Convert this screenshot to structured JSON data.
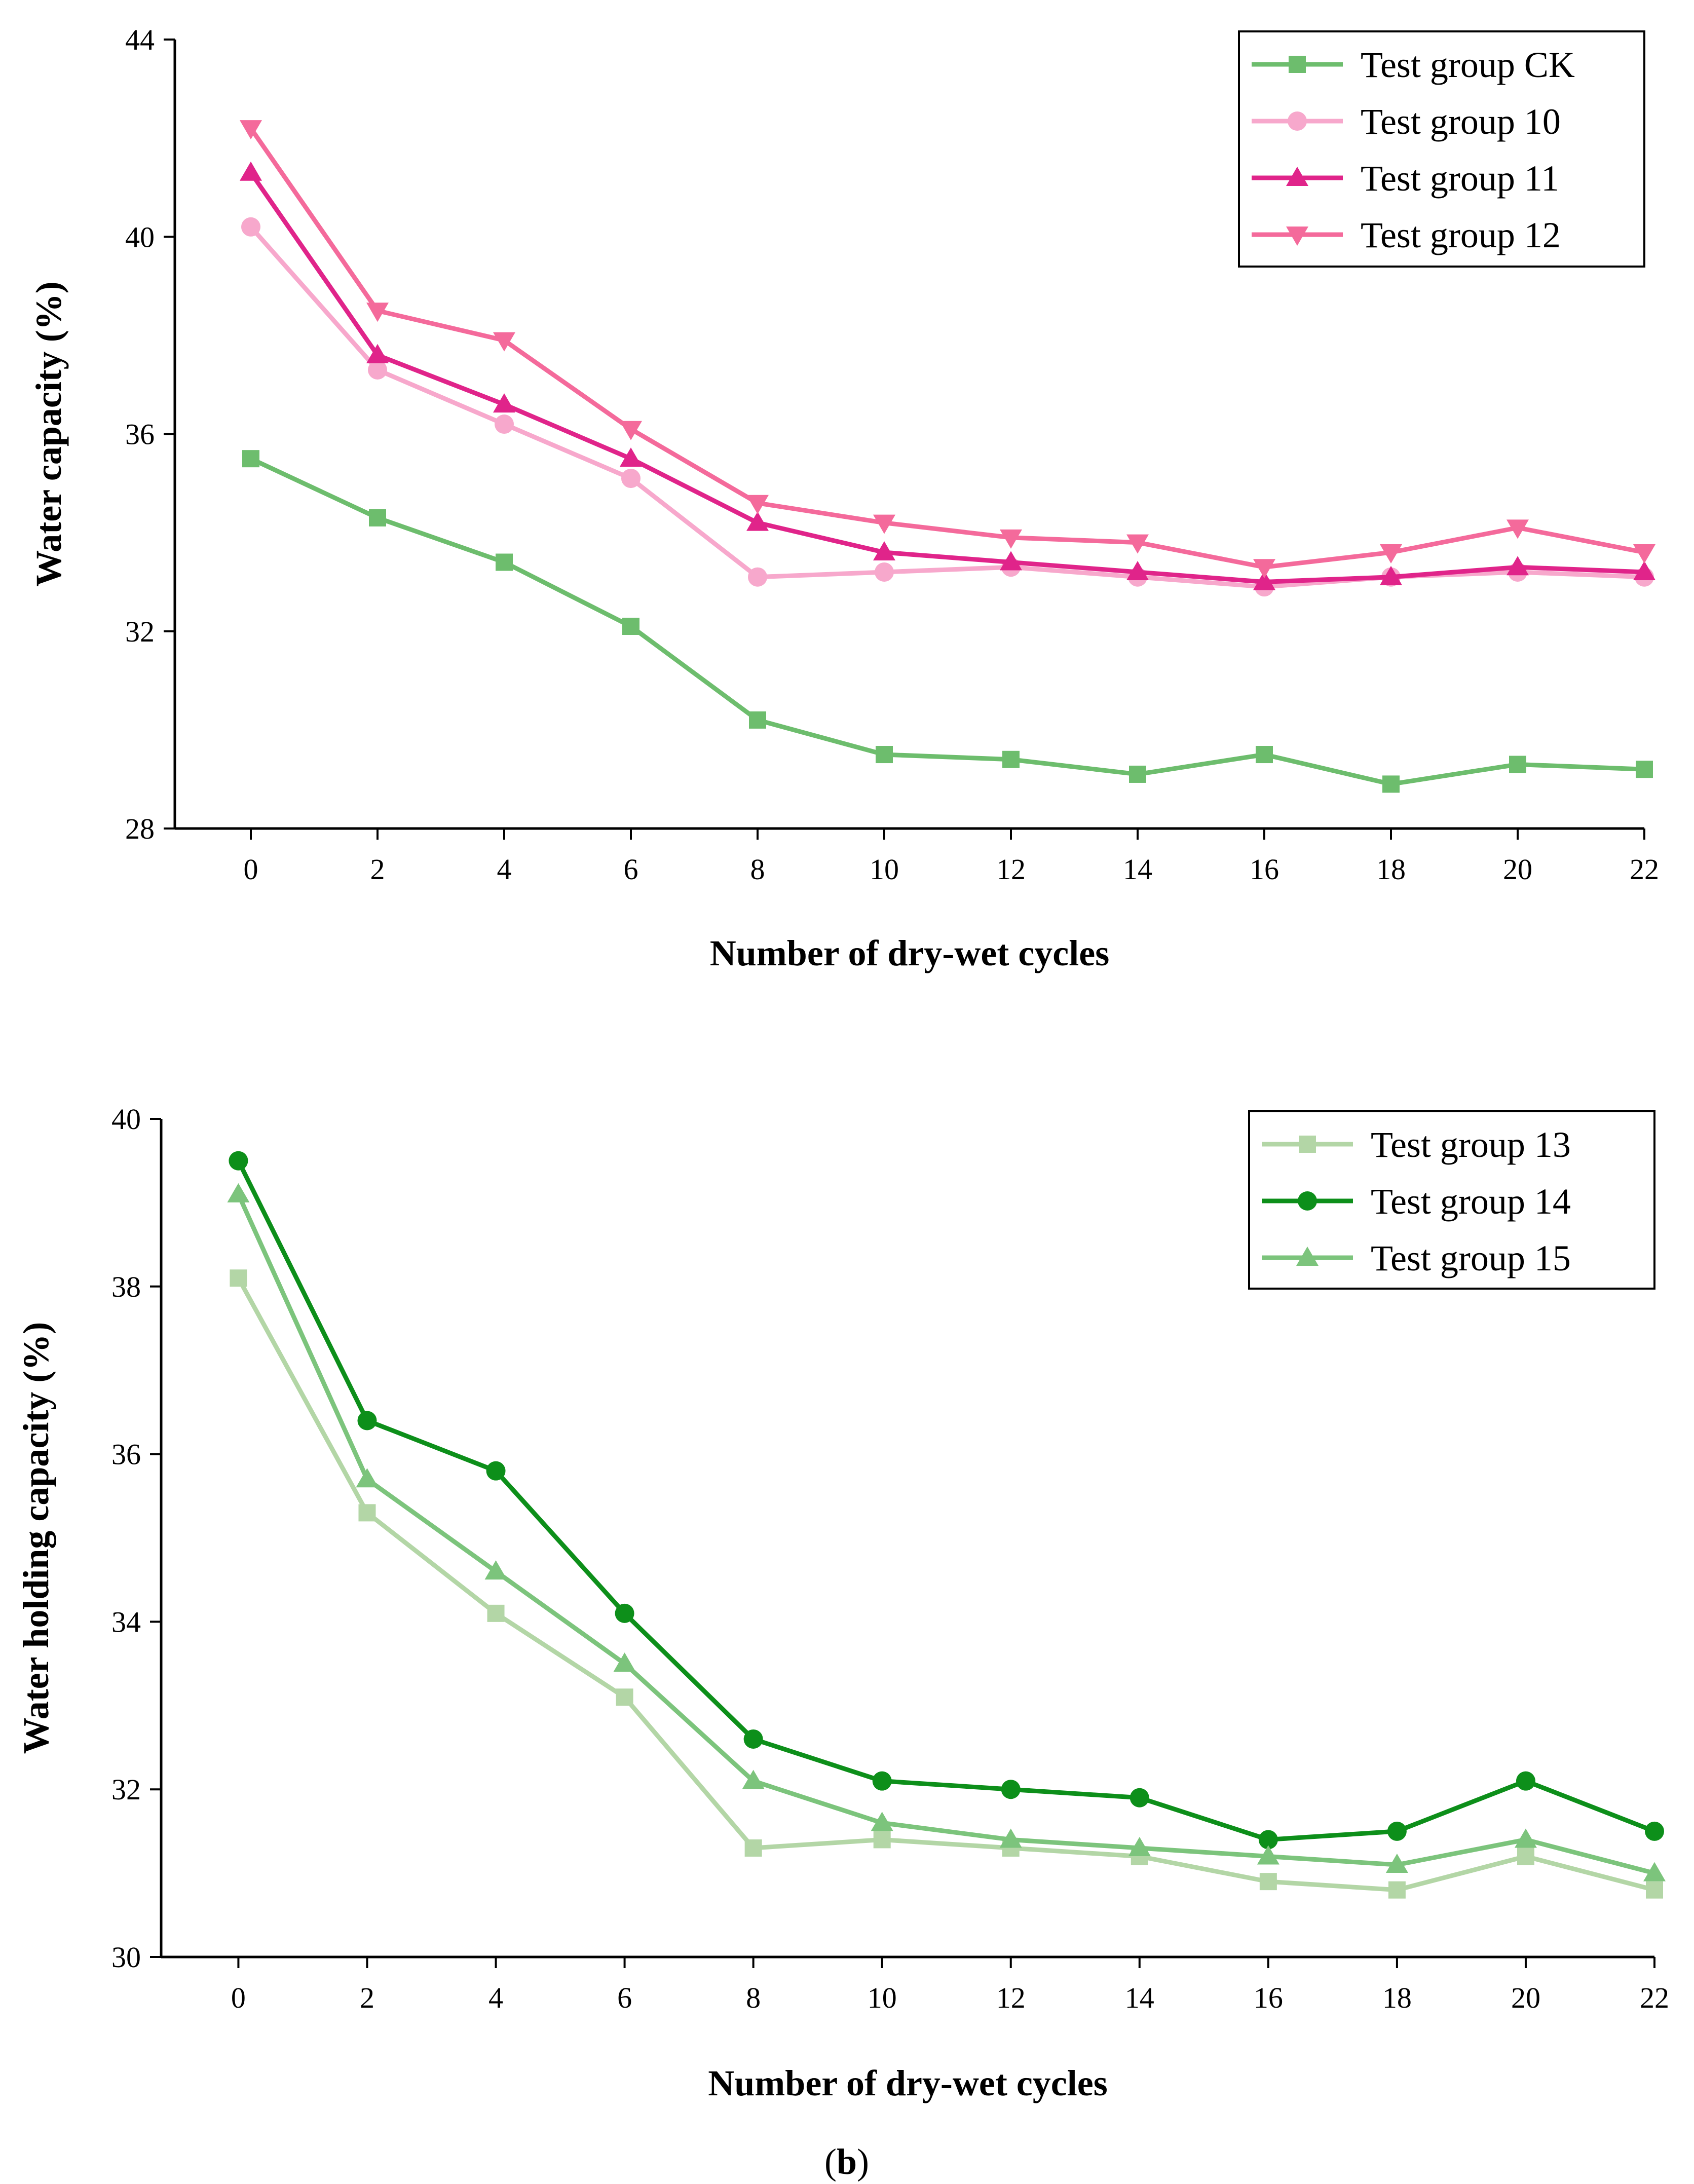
{
  "caption": {
    "open": "(",
    "letter": "b",
    "close": ")"
  },
  "chart_data": [
    {
      "type": "line",
      "title": "",
      "xlabel": "Number of dry-wet cycles",
      "ylabel": "Water capacity (%)",
      "xlim": [
        -1.2,
        22
      ],
      "ylim": [
        28,
        44
      ],
      "xticks": [
        0,
        2,
        4,
        6,
        8,
        10,
        12,
        14,
        16,
        18,
        20,
        22
      ],
      "yticks": [
        28,
        32,
        36,
        40,
        44
      ],
      "legend_position": "top-right",
      "x": [
        0,
        2,
        4,
        6,
        8,
        10,
        12,
        14,
        16,
        18,
        20,
        22
      ],
      "series": [
        {
          "name": "Test group CK",
          "color": "#6dbd6d",
          "marker": "square",
          "values": [
            35.5,
            34.3,
            33.4,
            32.1,
            30.2,
            29.5,
            29.4,
            29.1,
            29.5,
            28.9,
            29.3,
            29.2
          ]
        },
        {
          "name": "Test group 10",
          "color": "#f7a8cc",
          "marker": "circle",
          "values": [
            40.2,
            37.3,
            36.2,
            35.1,
            33.1,
            33.2,
            33.3,
            33.1,
            32.9,
            33.1,
            33.2,
            33.1
          ]
        },
        {
          "name": "Test group 11",
          "color": "#e0248a",
          "marker": "triangle-up",
          "values": [
            41.3,
            37.6,
            36.6,
            35.5,
            34.2,
            33.6,
            33.4,
            33.2,
            33.0,
            33.1,
            33.3,
            33.2
          ]
        },
        {
          "name": "Test group 12",
          "color": "#f46a9b",
          "marker": "triangle-down",
          "values": [
            42.2,
            38.5,
            37.9,
            36.1,
            34.6,
            34.2,
            33.9,
            33.8,
            33.3,
            33.6,
            34.1,
            33.6
          ]
        }
      ]
    },
    {
      "type": "line",
      "title": "",
      "xlabel": "Number of dry-wet cycles",
      "ylabel": "Water holding capacity (%)",
      "xlim": [
        -1.2,
        22
      ],
      "ylim": [
        30,
        40
      ],
      "xticks": [
        0,
        2,
        4,
        6,
        8,
        10,
        12,
        14,
        16,
        18,
        20,
        22
      ],
      "yticks": [
        30,
        32,
        34,
        36,
        38,
        40
      ],
      "legend_position": "top-right",
      "x": [
        0,
        2,
        4,
        6,
        8,
        10,
        12,
        14,
        16,
        18,
        20,
        22
      ],
      "series": [
        {
          "name": "Test group 13",
          "color": "#b3d6a6",
          "marker": "square",
          "values": [
            38.1,
            35.3,
            34.1,
            33.1,
            31.3,
            31.4,
            31.3,
            31.2,
            30.9,
            30.8,
            31.2,
            30.8
          ]
        },
        {
          "name": "Test group 14",
          "color": "#0d8f1a",
          "marker": "circle",
          "values": [
            39.5,
            36.4,
            35.8,
            34.1,
            32.6,
            32.1,
            32.0,
            31.9,
            31.4,
            31.5,
            32.1,
            31.5
          ]
        },
        {
          "name": "Test group 15",
          "color": "#7cc47c",
          "marker": "triangle-up",
          "values": [
            39.1,
            35.7,
            34.6,
            33.5,
            32.1,
            31.6,
            31.4,
            31.3,
            31.2,
            31.1,
            31.4,
            31.0
          ]
        }
      ]
    }
  ]
}
